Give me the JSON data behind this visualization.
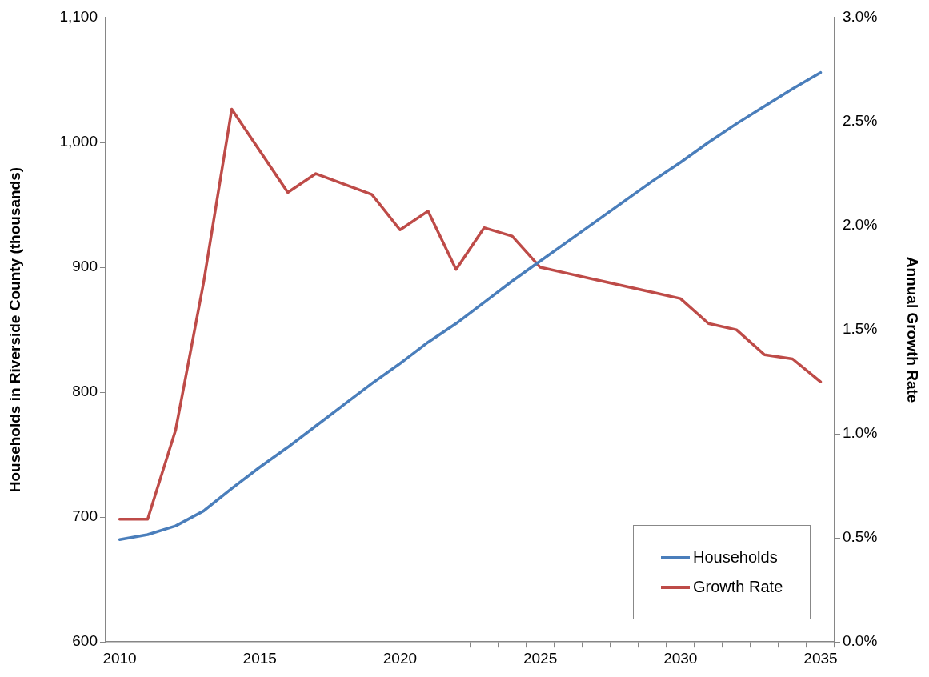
{
  "chart_data": {
    "type": "line",
    "ylabel": "Households in Riverside County (thousands)",
    "y2label": "Annual Growth Rate",
    "categories": [
      "2010",
      null,
      null,
      null,
      null,
      "2015",
      null,
      null,
      null,
      null,
      "2020",
      null,
      null,
      null,
      null,
      "2025",
      null,
      null,
      null,
      null,
      "2030",
      null,
      null,
      null,
      null,
      "2035"
    ],
    "series": [
      {
        "name": "Households",
        "color": "#4a7ebb",
        "values": [
          682,
          686,
          693,
          705,
          723,
          740,
          756,
          773,
          790,
          807,
          823,
          840,
          855,
          872,
          889,
          905,
          921,
          937,
          953,
          969,
          984,
          1000,
          1015,
          1029,
          1043,
          1056
        ]
      },
      {
        "name": "Growth Rate",
        "color": "#be4b48",
        "axis": "y2",
        "values": [
          0.59,
          0.59,
          1.02,
          1.73,
          2.56,
          2.36,
          2.16,
          2.25,
          2.2,
          2.15,
          1.98,
          2.07,
          1.79,
          1.99,
          1.95,
          1.8,
          1.77,
          1.74,
          1.71,
          1.68,
          1.65,
          1.53,
          1.5,
          1.38,
          1.36,
          1.25
        ]
      }
    ],
    "ylim": [
      600,
      1100
    ],
    "yticks": [
      {
        "value": 600,
        "label": "600"
      },
      {
        "value": 700,
        "label": "700"
      },
      {
        "value": 800,
        "label": "800"
      },
      {
        "value": 900,
        "label": "900"
      },
      {
        "value": 1000,
        "label": "1,000"
      },
      {
        "value": 1100,
        "label": "1,100"
      }
    ],
    "y2lim": [
      0,
      3
    ],
    "y2ticks": [
      {
        "value": 0,
        "label": "0.0%"
      },
      {
        "value": 0.5,
        "label": "0.5%"
      },
      {
        "value": 1,
        "label": "1.0%"
      },
      {
        "value": 1.5,
        "label": "1.5%"
      },
      {
        "value": 2,
        "label": "2.0%"
      },
      {
        "value": 2.5,
        "label": "2.5%"
      },
      {
        "value": 3,
        "label": "3.0%"
      }
    ],
    "grid": false,
    "legend": "bottom right",
    "marker": "none",
    "line_style": "solid"
  }
}
